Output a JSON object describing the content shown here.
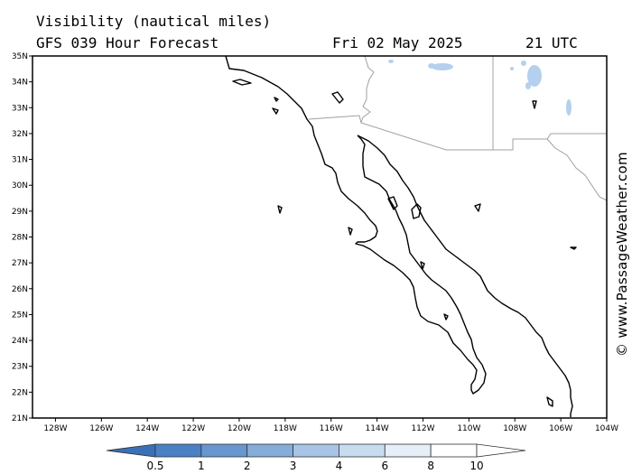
{
  "header": {
    "title": "Visibility (nautical miles)",
    "subtitle": "GFS 039 Hour Forecast",
    "date": "Fri 02 May 2025",
    "time": "21 UTC"
  },
  "watermark": "© www.PassageWeather.com",
  "map": {
    "lat_ticks": [
      "35N",
      "34N",
      "33N",
      "32N",
      "31N",
      "30N",
      "29N",
      "28N",
      "27N",
      "26N",
      "25N",
      "24N",
      "23N",
      "22N",
      "21N"
    ],
    "lon_ticks": [
      "128W",
      "126W",
      "124W",
      "122W",
      "120W",
      "118W",
      "116W",
      "114W",
      "112W",
      "110W",
      "108W",
      "106W",
      "104W"
    ],
    "lat_range": [
      21,
      35
    ],
    "lon_range": [
      -129,
      -104
    ],
    "coast_color": "#000000",
    "border_color": "#a0a0a0",
    "fog_color": "#9fc0e6"
  },
  "colorbar": {
    "labels": [
      "0.5",
      "1",
      "2",
      "3",
      "4",
      "6",
      "8",
      "10"
    ],
    "colors": [
      "#3a70b8",
      "#4a80c4",
      "#6796d0",
      "#86acda",
      "#a7c4e6",
      "#c8dcf0",
      "#e6eef8",
      "#ffffff"
    ]
  }
}
